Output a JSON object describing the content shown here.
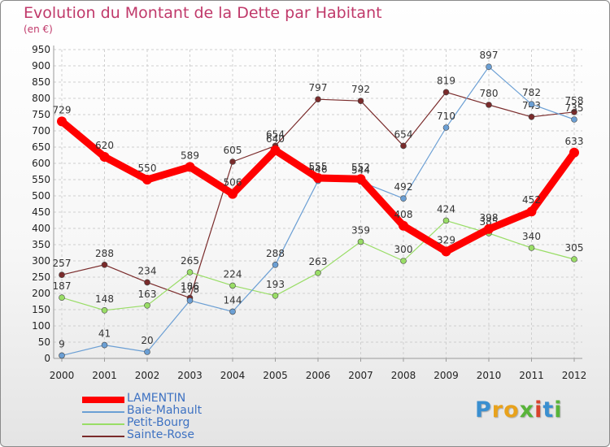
{
  "header": {
    "title": "Evolution du Montant de la Dette par Habitant",
    "subtitle": "(en €)"
  },
  "chart_data": {
    "type": "line",
    "title": "Evolution du Montant de la Dette par Habitant",
    "subtitle": "(en €)",
    "xlabel": "",
    "ylabel": "",
    "x": [
      "2000",
      "2001",
      "2002",
      "2003",
      "2004",
      "2005",
      "2006",
      "2007",
      "2008",
      "2009",
      "2010",
      "2011",
      "2012"
    ],
    "ylim": [
      0,
      950
    ],
    "yticks": [
      0,
      50,
      100,
      150,
      200,
      250,
      300,
      350,
      400,
      450,
      500,
      550,
      600,
      650,
      700,
      750,
      800,
      850,
      900,
      950
    ],
    "grid": true,
    "legend": "bottom-left",
    "series": [
      {
        "name": "LAMENTIN",
        "color": "#ff0000",
        "values": [
          729,
          620,
          550,
          589,
          506,
          640,
          555,
          552,
          408,
          329,
          398,
          452,
          633
        ]
      },
      {
        "name": "Baie-Mahault",
        "color": "#6b9fd4",
        "values": [
          9,
          41,
          20,
          178,
          144,
          288,
          546,
          544,
          492,
          710,
          897,
          782,
          735
        ]
      },
      {
        "name": "Petit-Bourg",
        "color": "#99dd66",
        "values": [
          187,
          148,
          163,
          265,
          224,
          193,
          263,
          359,
          300,
          424,
          385,
          340,
          305
        ]
      },
      {
        "name": "Sainte-Rose",
        "color": "#7a2b2b",
        "values": [
          257,
          288,
          234,
          186,
          605,
          654,
          797,
          792,
          654,
          819,
          780,
          743,
          758
        ]
      }
    ]
  },
  "logo": {
    "letters": [
      {
        "char": "P",
        "color": "#3a8fd0"
      },
      {
        "char": "r",
        "color": "#e8a21c"
      },
      {
        "char": "o",
        "color": "#e8a21c"
      },
      {
        "char": "x",
        "color": "#58b43a"
      },
      {
        "char": "i",
        "color": "#d8432d"
      },
      {
        "char": "t",
        "color": "#3a8fd0"
      },
      {
        "char": "i",
        "color": "#58b43a"
      }
    ]
  }
}
